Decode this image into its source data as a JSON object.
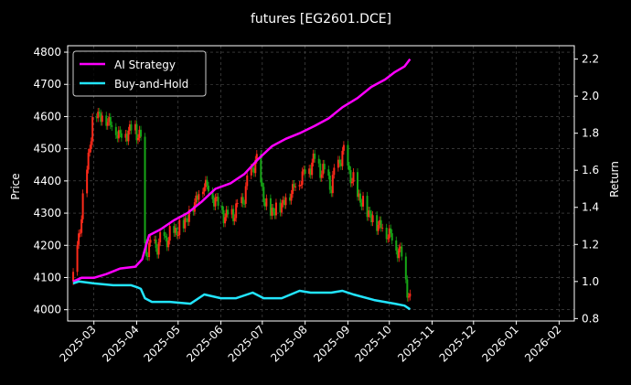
{
  "chart_data": {
    "type": "line",
    "title": "futures [EG2601.DCE]",
    "ylabel_left": "Price",
    "ylabel_right": "Return",
    "grid": true,
    "legend_placement": "top-left",
    "background": "#000000",
    "x_ticks": [
      "2025-03",
      "2025-04",
      "2025-05",
      "2025-06",
      "2025-07",
      "2025-08",
      "2025-09",
      "2025-10",
      "2025-11",
      "2025-12",
      "2026-01",
      "2026-02"
    ],
    "xlim": [
      "2025-02-10",
      "2026-02-12"
    ],
    "price_axis": {
      "ylim": [
        3965,
        4820
      ],
      "ticks": [
        4000,
        4100,
        4200,
        4300,
        4400,
        4500,
        4600,
        4700,
        4800
      ]
    },
    "return_axis": {
      "ylim": [
        0.787,
        2.272
      ],
      "ticks": [
        0.8,
        1.0,
        1.2,
        1.4,
        1.6,
        1.8,
        2.0,
        2.2
      ]
    },
    "candle_colors": {
      "up": "#ff2a1a",
      "down": "#17a617"
    },
    "series": [
      {
        "name": "AI Strategy",
        "axis": "return",
        "color": "#ff00ff",
        "points": [
          [
            "2025-02-14",
            1.0
          ],
          [
            "2025-02-20",
            1.02
          ],
          [
            "2025-03-01",
            1.02
          ],
          [
            "2025-03-10",
            1.04
          ],
          [
            "2025-03-20",
            1.07
          ],
          [
            "2025-03-31",
            1.08
          ],
          [
            "2025-04-05",
            1.12
          ],
          [
            "2025-04-08",
            1.2
          ],
          [
            "2025-04-10",
            1.25
          ],
          [
            "2025-04-18",
            1.28
          ],
          [
            "2025-04-28",
            1.33
          ],
          [
            "2025-05-08",
            1.37
          ],
          [
            "2025-05-18",
            1.43
          ],
          [
            "2025-05-28",
            1.5
          ],
          [
            "2025-06-08",
            1.53
          ],
          [
            "2025-06-18",
            1.58
          ],
          [
            "2025-06-28",
            1.66
          ],
          [
            "2025-07-08",
            1.73
          ],
          [
            "2025-07-18",
            1.77
          ],
          [
            "2025-07-28",
            1.8
          ],
          [
            "2025-08-08",
            1.84
          ],
          [
            "2025-08-18",
            1.88
          ],
          [
            "2025-08-28",
            1.94
          ],
          [
            "2025-09-08",
            1.99
          ],
          [
            "2025-09-18",
            2.05
          ],
          [
            "2025-09-28",
            2.09
          ],
          [
            "2025-10-05",
            2.13
          ],
          [
            "2025-10-12",
            2.16
          ],
          [
            "2025-10-16",
            2.2
          ]
        ]
      },
      {
        "name": "Buy-and-Hold",
        "axis": "return",
        "color": "#22e5ff",
        "points": [
          [
            "2025-02-14",
            0.99
          ],
          [
            "2025-02-18",
            1.0
          ],
          [
            "2025-03-01",
            0.99
          ],
          [
            "2025-03-15",
            0.98
          ],
          [
            "2025-03-28",
            0.98
          ],
          [
            "2025-04-01",
            0.97
          ],
          [
            "2025-04-04",
            0.96
          ],
          [
            "2025-04-07",
            0.91
          ],
          [
            "2025-04-12",
            0.89
          ],
          [
            "2025-04-25",
            0.89
          ],
          [
            "2025-05-10",
            0.88
          ],
          [
            "2025-05-20",
            0.93
          ],
          [
            "2025-06-01",
            0.91
          ],
          [
            "2025-06-12",
            0.91
          ],
          [
            "2025-06-24",
            0.94
          ],
          [
            "2025-07-02",
            0.91
          ],
          [
            "2025-07-15",
            0.91
          ],
          [
            "2025-07-28",
            0.95
          ],
          [
            "2025-08-05",
            0.94
          ],
          [
            "2025-08-20",
            0.94
          ],
          [
            "2025-08-28",
            0.95
          ],
          [
            "2025-09-05",
            0.93
          ],
          [
            "2025-09-20",
            0.9
          ],
          [
            "2025-10-05",
            0.88
          ],
          [
            "2025-10-12",
            0.87
          ],
          [
            "2025-10-16",
            0.85
          ]
        ]
      }
    ],
    "candle_path": [
      [
        "2025-02-14",
        4088
      ],
      [
        "2025-03-01",
        4620
      ],
      [
        "2025-03-12",
        4590
      ],
      [
        "2025-03-20",
        4545
      ],
      [
        "2025-03-31",
        4570
      ],
      [
        "2025-04-04",
        4530
      ],
      [
        "2025-04-07",
        4190
      ],
      [
        "2025-04-14",
        4200
      ],
      [
        "2025-04-25",
        4230
      ],
      [
        "2025-05-05",
        4270
      ],
      [
        "2025-05-12",
        4330
      ],
      [
        "2025-05-20",
        4400
      ],
      [
        "2025-06-05",
        4290
      ],
      [
        "2025-06-15",
        4320
      ],
      [
        "2025-06-26",
        4470
      ],
      [
        "2025-07-05",
        4300
      ],
      [
        "2025-07-15",
        4330
      ],
      [
        "2025-07-28",
        4410
      ],
      [
        "2025-08-08",
        4470
      ],
      [
        "2025-08-20",
        4390
      ],
      [
        "2025-08-28",
        4490
      ],
      [
        "2025-09-08",
        4360
      ],
      [
        "2025-09-18",
        4290
      ],
      [
        "2025-10-01",
        4240
      ],
      [
        "2025-10-10",
        4170
      ],
      [
        "2025-10-16",
        4025
      ]
    ]
  }
}
